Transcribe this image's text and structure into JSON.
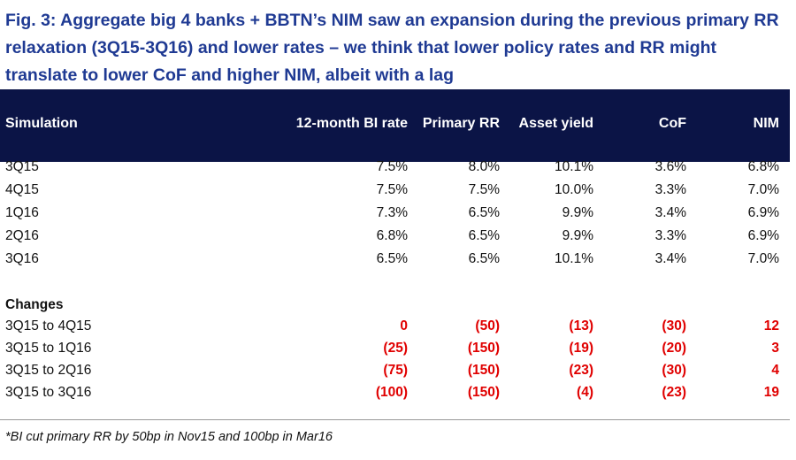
{
  "title": "Fig. 3:  Aggregate big 4 banks + BBTN’s NIM saw an expansion during the previous primary RR relaxation (3Q15-3Q16) and lower rates – we think that lower policy rates and RR might translate to lower CoF and higher NIM, albeit with a lag",
  "headers": {
    "simulation": "Simulation",
    "bi_rate": "12-month BI rate",
    "primary_rr": "Primary RR",
    "asset_yield": "Asset yield",
    "cof": "CoF",
    "nim": "NIM"
  },
  "rows": [
    {
      "label": "3Q15",
      "bi_rate": "7.5%",
      "primary_rr": "8.0%",
      "asset_yield": "10.1%",
      "cof": "3.6%",
      "nim": "6.8%"
    },
    {
      "label": "4Q15",
      "bi_rate": "7.5%",
      "primary_rr": "7.5%",
      "asset_yield": "10.0%",
      "cof": "3.3%",
      "nim": "7.0%"
    },
    {
      "label": "1Q16",
      "bi_rate": "7.3%",
      "primary_rr": "6.5%",
      "asset_yield": "9.9%",
      "cof": "3.4%",
      "nim": "6.9%"
    },
    {
      "label": "2Q16",
      "bi_rate": "6.8%",
      "primary_rr": "6.5%",
      "asset_yield": "9.9%",
      "cof": "3.3%",
      "nim": "6.9%"
    },
    {
      "label": "3Q16",
      "bi_rate": "6.5%",
      "primary_rr": "6.5%",
      "asset_yield": "10.1%",
      "cof": "3.4%",
      "nim": "7.0%"
    }
  ],
  "changes_label": "Changes",
  "changes": [
    {
      "label": "3Q15 to 4Q15",
      "bi_rate": "0",
      "primary_rr": "(50)",
      "asset_yield": "(13)",
      "cof": "(30)",
      "nim": "12"
    },
    {
      "label": "3Q15 to 1Q16",
      "bi_rate": "(25)",
      "primary_rr": "(150)",
      "asset_yield": "(19)",
      "cof": "(20)",
      "nim": "3"
    },
    {
      "label": "3Q15 to 2Q16",
      "bi_rate": "(75)",
      "primary_rr": "(150)",
      "asset_yield": "(23)",
      "cof": "(30)",
      "nim": "4"
    },
    {
      "label": "3Q15 to 3Q16",
      "bi_rate": "(100)",
      "primary_rr": "(150)",
      "asset_yield": "(4)",
      "cof": "(23)",
      "nim": "19"
    }
  ],
  "note": "*BI cut primary RR by 50bp in Nov15 and 100bp in Mar16",
  "colors": {
    "title": "#1f3a93",
    "header_bg": "#0b1446",
    "change_values": "#e00000"
  }
}
